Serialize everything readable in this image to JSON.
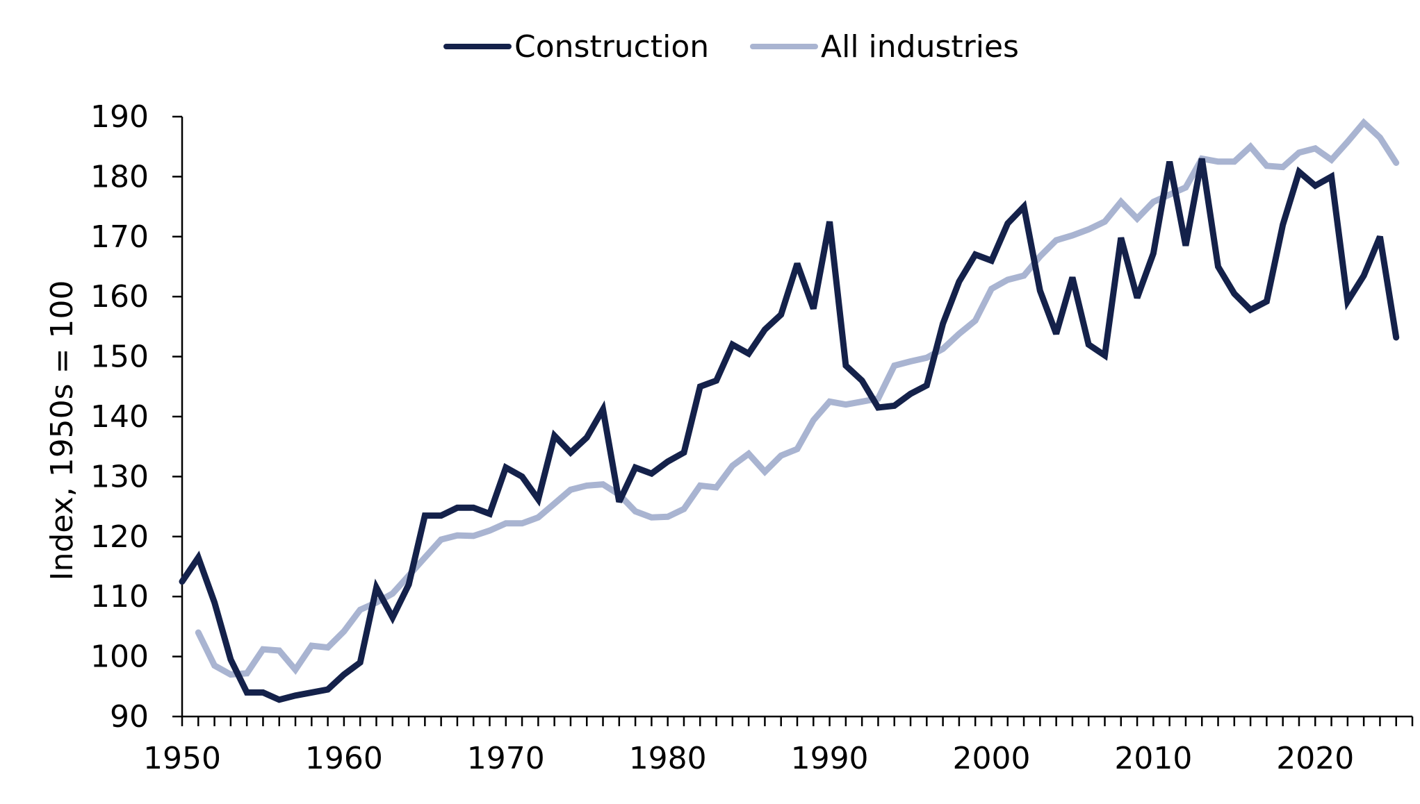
{
  "chart_data": {
    "type": "line",
    "title": "",
    "xlabel": "",
    "ylabel": "Index, 1950s = 100",
    "xlim": [
      1950,
      2026
    ],
    "ylim": [
      90,
      190
    ],
    "x_ticks": [
      1950,
      1960,
      1970,
      1980,
      1990,
      2000,
      2010,
      2020
    ],
    "y_ticks": [
      90,
      100,
      110,
      120,
      130,
      140,
      150,
      160,
      170,
      180,
      190
    ],
    "grid": false,
    "legend_position": "top-center",
    "series": [
      {
        "name": "Construction",
        "color": "#14214a",
        "x": [
          1950,
          1951,
          1952,
          1953,
          1954,
          1955,
          1956,
          1957,
          1958,
          1959,
          1960,
          1961,
          1962,
          1963,
          1964,
          1965,
          1966,
          1967,
          1968,
          1969,
          1970,
          1971,
          1972,
          1973,
          1974,
          1975,
          1976,
          1977,
          1978,
          1979,
          1980,
          1981,
          1982,
          1983,
          1984,
          1985,
          1986,
          1987,
          1988,
          1989,
          1990,
          1991,
          1992,
          1993,
          1994,
          1995,
          1996,
          1997,
          1998,
          1999,
          2000,
          2001,
          2002,
          2003,
          2004,
          2005,
          2006,
          2007,
          2008,
          2009,
          2010,
          2011,
          2012,
          2013,
          2014,
          2015,
          2016,
          2017,
          2018,
          2019,
          2020,
          2021,
          2022,
          2023,
          2024,
          2025
        ],
        "values": [
          112.5,
          116.5,
          109,
          99.5,
          94,
          94,
          92.8,
          93.5,
          94,
          94.5,
          97,
          99,
          111.5,
          106.5,
          112,
          123.5,
          123.5,
          124.8,
          124.8,
          123.8,
          131.5,
          130,
          126.2,
          136.8,
          134,
          136.5,
          141.2,
          125.8,
          131.5,
          130.5,
          132.5,
          134,
          145,
          146,
          152,
          150.5,
          154.5,
          157,
          165.5,
          158,
          172.5,
          148.5,
          146,
          141.5,
          141.8,
          143.8,
          145.2,
          155.5,
          162.5,
          167,
          166,
          172.2,
          175,
          161,
          153.8,
          163.2,
          152,
          150.2,
          169.8,
          159.8,
          167.2,
          182.5,
          168.5,
          183,
          165,
          160.5,
          157.8,
          159.2,
          172,
          180.8,
          178.5,
          180,
          159.2,
          163.5,
          170,
          153.2
        ]
      },
      {
        "name": "All industries",
        "color": "#a9b4d1",
        "x": [
          1951,
          1952,
          1953,
          1954,
          1955,
          1956,
          1957,
          1958,
          1959,
          1960,
          1961,
          1962,
          1963,
          1964,
          1965,
          1966,
          1967,
          1968,
          1969,
          1970,
          1971,
          1972,
          1973,
          1974,
          1975,
          1976,
          1977,
          1978,
          1979,
          1980,
          1981,
          1982,
          1983,
          1984,
          1985,
          1986,
          1987,
          1988,
          1989,
          1990,
          1991,
          1992,
          1993,
          1994,
          1995,
          1996,
          1997,
          1998,
          1999,
          2000,
          2001,
          2002,
          2003,
          2004,
          2005,
          2006,
          2007,
          2008,
          2009,
          2010,
          2011,
          2012,
          2013,
          2014,
          2015,
          2016,
          2017,
          2018,
          2019,
          2020,
          2021,
          2022,
          2023,
          2024,
          2025
        ],
        "values": [
          104,
          98.5,
          97,
          97.2,
          101.2,
          101,
          97.8,
          101.8,
          101.5,
          104.2,
          107.8,
          109,
          110.5,
          113.5,
          116.5,
          119.5,
          120.2,
          120.1,
          121,
          122.2,
          122.2,
          123.2,
          125.5,
          127.8,
          128.5,
          128.7,
          127,
          124.2,
          123.2,
          123.3,
          124.6,
          128.5,
          128.2,
          131.8,
          133.8,
          130.8,
          133.5,
          134.6,
          139.4,
          142.5,
          142,
          142.5,
          143,
          148.5,
          149.2,
          149.8,
          151.3,
          153.8,
          156,
          161.3,
          162.8,
          163.5,
          166.7,
          169.4,
          170.2,
          171.2,
          172.5,
          175.8,
          173,
          175.8,
          177,
          178.2,
          183,
          182.5,
          182.5,
          185,
          181.8,
          181.6,
          184,
          184.7,
          182.8,
          185.8,
          189,
          186.5,
          182.3
        ]
      }
    ]
  }
}
